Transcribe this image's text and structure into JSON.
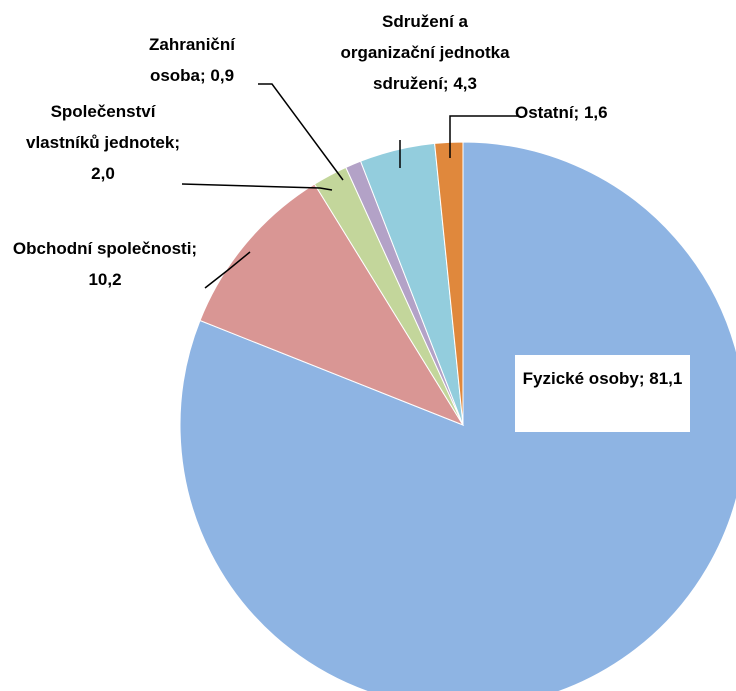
{
  "chart_data": {
    "type": "pie",
    "categories": [
      "Fyzické osoby; 81,1",
      "Obchodní společnosti; 10,2",
      "Společenství vlastníků jednotek; 2,0",
      "Zahraniční osoba; 0,9",
      "Sdružení a organizační jednotka sdružení; 4,3",
      "Ostatní; 1,6"
    ],
    "values": [
      81.1,
      10.2,
      2.0,
      0.9,
      4.3,
      1.6
    ],
    "colors": [
      "#8eb4e3",
      "#d99694",
      "#c3d69b",
      "#b3a2c7",
      "#93cddd",
      "#e0883c"
    ]
  }
}
